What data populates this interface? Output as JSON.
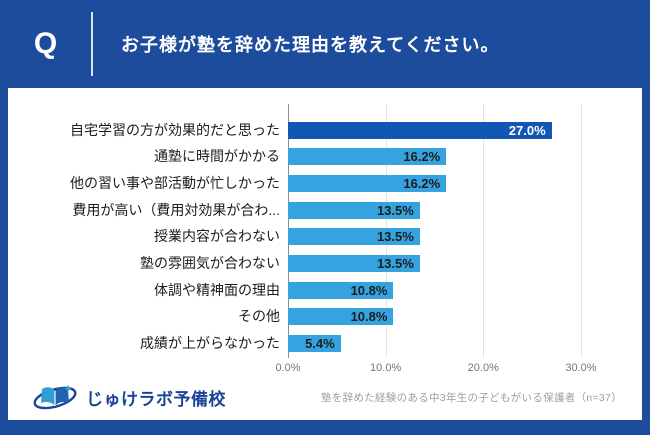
{
  "header": {
    "q_label": "Q",
    "question": "お子様が塾を辞めた理由を教えてください。"
  },
  "chart_data": {
    "type": "bar",
    "orientation": "horizontal",
    "title": "お子様が塾を辞めた理由を教えてください。",
    "categories": [
      "自宅学習の方が効果的だと思った",
      "通塾に時間がかかる",
      "他の習い事や部活動が忙しかった",
      "費用が高い（費用対効果が合わ...",
      "授業内容が合わない",
      "塾の雰囲気が合わない",
      "体調や精神面の理由",
      "その他",
      "成績が上がらなかった"
    ],
    "values": [
      27.0,
      16.2,
      16.2,
      13.5,
      13.5,
      13.5,
      10.8,
      10.8,
      5.4
    ],
    "value_labels": [
      "27.0%",
      "16.2%",
      "16.2%",
      "13.5%",
      "13.5%",
      "13.5%",
      "10.8%",
      "10.8%",
      "5.4%"
    ],
    "unit": "%",
    "highlight_index": 0,
    "x_ticks": [
      {
        "value": 0,
        "label": "0.0%"
      },
      {
        "value": 10,
        "label": "10.0%"
      },
      {
        "value": 20,
        "label": "20.0%"
      },
      {
        "value": 30,
        "label": "30.0%"
      }
    ],
    "xlim": [
      0,
      34
    ],
    "grid": true,
    "legend": "none"
  },
  "footer": {
    "logo_text": "じゅけラボ予備校",
    "note": "塾を辞めた経験のある中3年生の子どもがいる保護者（n=37）"
  },
  "colors": {
    "accent_blue": "#1d4c9c",
    "bar_highlight": "#1257b5",
    "bar_normal": "#35a3e0",
    "value_on_highlight": "#ffffff",
    "value_on_normal": "#1c1c1c",
    "logo_blue": "#1a4496"
  }
}
